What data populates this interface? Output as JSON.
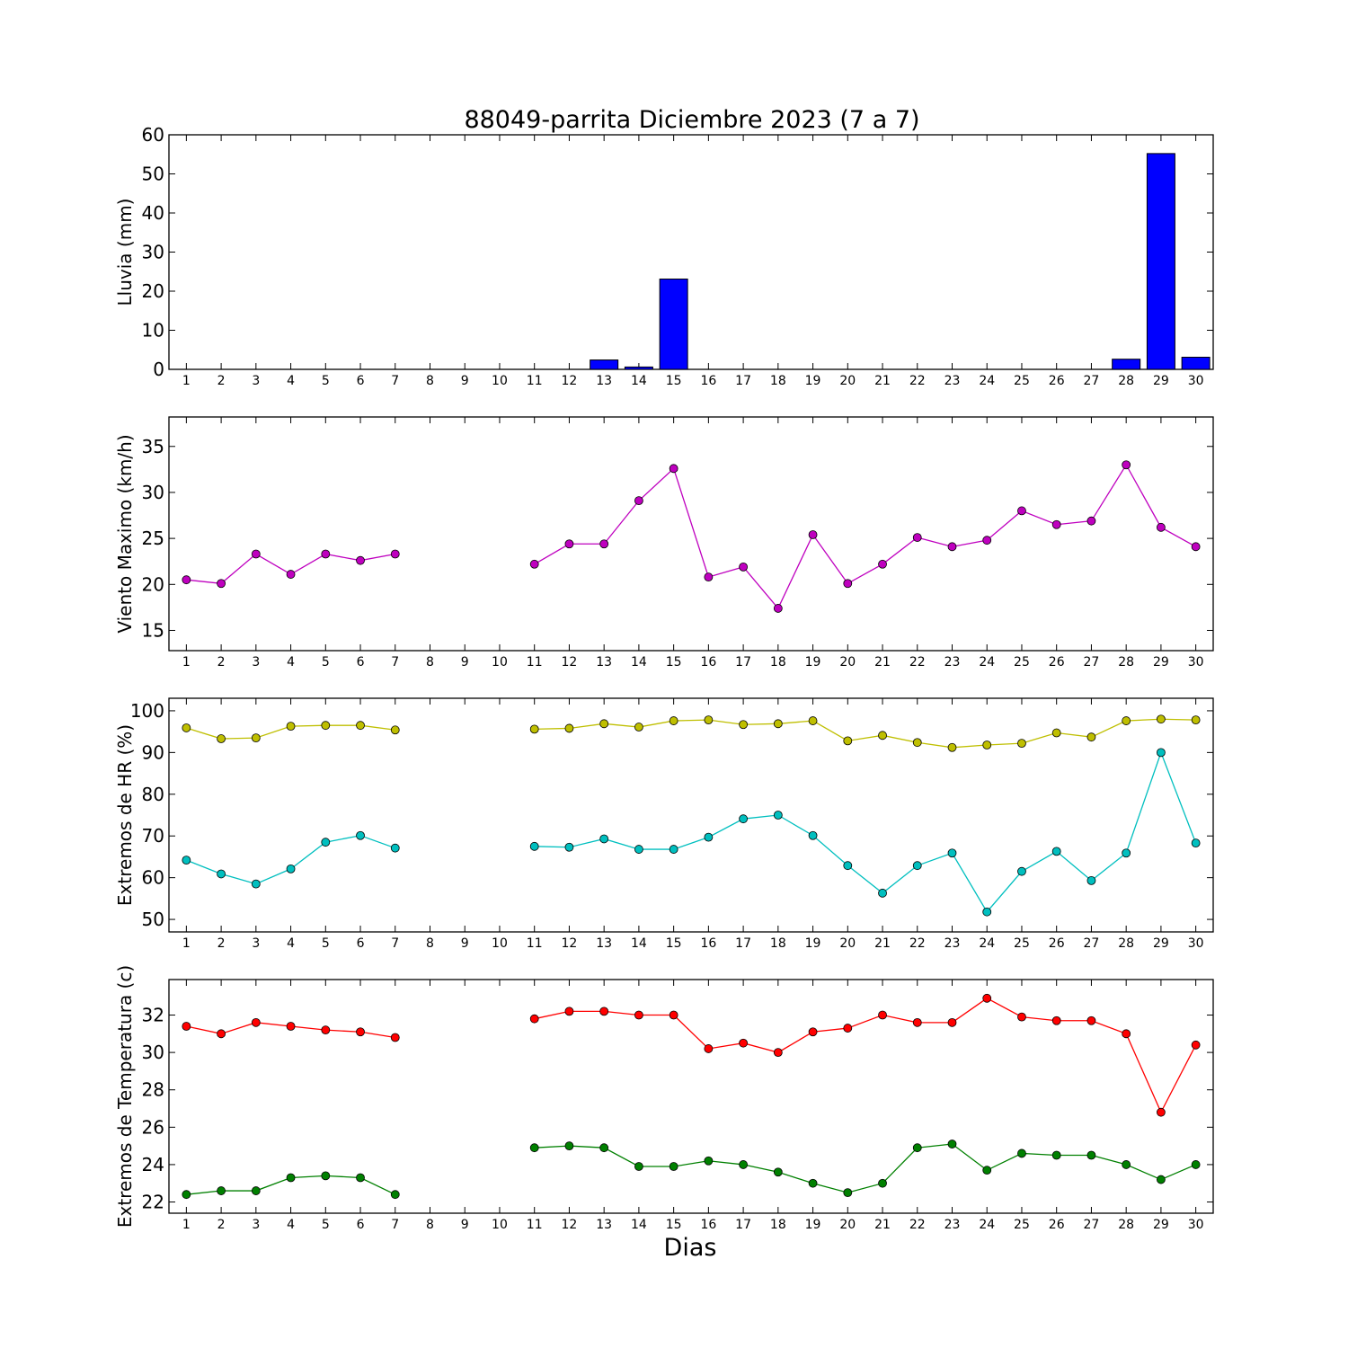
{
  "title": "88049-parrita Diciembre 2023  (7 a 7)",
  "xlabel": "Dias",
  "chart_data": [
    {
      "type": "bar",
      "ylabel": "Lluvia (mm)",
      "ylim": [
        0,
        60
      ],
      "yticks": [
        0,
        10,
        20,
        30,
        40,
        50,
        60
      ],
      "categories": [
        1,
        2,
        3,
        4,
        5,
        6,
        7,
        8,
        9,
        10,
        11,
        12,
        13,
        14,
        15,
        16,
        17,
        18,
        19,
        20,
        21,
        22,
        23,
        24,
        25,
        26,
        27,
        28,
        29,
        30
      ],
      "series": [
        {
          "color": "#0000ff",
          "values": [
            0,
            0,
            0,
            0,
            0,
            0,
            0,
            null,
            null,
            null,
            0,
            0,
            2.4,
            0.6,
            23.1,
            0,
            0,
            0,
            0,
            0,
            0,
            0,
            0,
            0,
            0,
            0,
            0,
            2.6,
            55.2,
            3.1
          ]
        }
      ]
    },
    {
      "type": "line",
      "ylabel": "Viento Maximo (km/h)",
      "ylim": [
        12.8,
        38.2
      ],
      "yticks": [
        15,
        20,
        25,
        30,
        35
      ],
      "categories": [
        1,
        2,
        3,
        4,
        5,
        6,
        7,
        8,
        9,
        10,
        11,
        12,
        13,
        14,
        15,
        16,
        17,
        18,
        19,
        20,
        21,
        22,
        23,
        24,
        25,
        26,
        27,
        28,
        29,
        30
      ],
      "series": [
        {
          "color": "#bf00bf",
          "values": [
            20.5,
            20.1,
            23.3,
            21.1,
            23.3,
            22.6,
            23.3,
            null,
            null,
            null,
            22.2,
            24.4,
            24.4,
            29.1,
            32.6,
            20.8,
            21.9,
            17.4,
            25.4,
            20.1,
            22.2,
            25.1,
            24.1,
            24.8,
            28.0,
            26.5,
            26.9,
            33.0,
            26.2,
            24.1
          ]
        }
      ]
    },
    {
      "type": "line",
      "ylabel": "Extremos de HR (%)",
      "ylim": [
        47,
        103
      ],
      "yticks": [
        50,
        60,
        70,
        80,
        90,
        100
      ],
      "categories": [
        1,
        2,
        3,
        4,
        5,
        6,
        7,
        8,
        9,
        10,
        11,
        12,
        13,
        14,
        15,
        16,
        17,
        18,
        19,
        20,
        21,
        22,
        23,
        24,
        25,
        26,
        27,
        28,
        29,
        30
      ],
      "series": [
        {
          "color": "#bfbf00",
          "values": [
            95.9,
            93.3,
            93.5,
            96.3,
            96.5,
            96.5,
            95.4,
            null,
            null,
            null,
            95.6,
            95.8,
            96.9,
            96.1,
            97.6,
            97.8,
            96.7,
            96.9,
            97.6,
            92.8,
            94.1,
            92.4,
            91.2,
            91.8,
            92.2,
            94.7,
            93.7,
            97.6,
            98.0,
            97.8
          ]
        },
        {
          "color": "#00bfbf",
          "values": [
            64.2,
            60.9,
            58.5,
            62.1,
            68.5,
            70.1,
            67.1,
            null,
            null,
            null,
            67.5,
            67.3,
            69.3,
            66.8,
            66.8,
            69.7,
            74.1,
            75.0,
            70.1,
            62.9,
            56.3,
            62.9,
            65.9,
            51.8,
            61.5,
            66.3,
            59.3,
            65.9,
            90.0,
            68.3
          ]
        }
      ]
    },
    {
      "type": "line",
      "ylabel": "Extremos de Temperatura (c)",
      "ylim": [
        21.4,
        33.9
      ],
      "yticks": [
        22,
        24,
        26,
        28,
        30,
        32
      ],
      "categories": [
        1,
        2,
        3,
        4,
        5,
        6,
        7,
        8,
        9,
        10,
        11,
        12,
        13,
        14,
        15,
        16,
        17,
        18,
        19,
        20,
        21,
        22,
        23,
        24,
        25,
        26,
        27,
        28,
        29,
        30
      ],
      "series": [
        {
          "color": "#ff0000",
          "values": [
            31.4,
            31.0,
            31.6,
            31.4,
            31.2,
            31.1,
            30.8,
            null,
            null,
            null,
            31.8,
            32.2,
            32.2,
            32.0,
            32.0,
            30.2,
            30.5,
            30.0,
            31.1,
            31.3,
            32.0,
            31.6,
            31.6,
            32.9,
            31.9,
            31.7,
            31.7,
            31.0,
            26.8,
            30.4
          ]
        },
        {
          "color": "#008000",
          "values": [
            22.4,
            22.6,
            22.6,
            23.3,
            23.4,
            23.3,
            22.4,
            null,
            null,
            null,
            24.9,
            25.0,
            24.9,
            23.9,
            23.9,
            24.2,
            24.0,
            23.6,
            23.0,
            22.5,
            23.0,
            24.9,
            25.1,
            23.7,
            24.6,
            24.5,
            24.5,
            24.0,
            23.2,
            24.0
          ]
        }
      ]
    }
  ]
}
